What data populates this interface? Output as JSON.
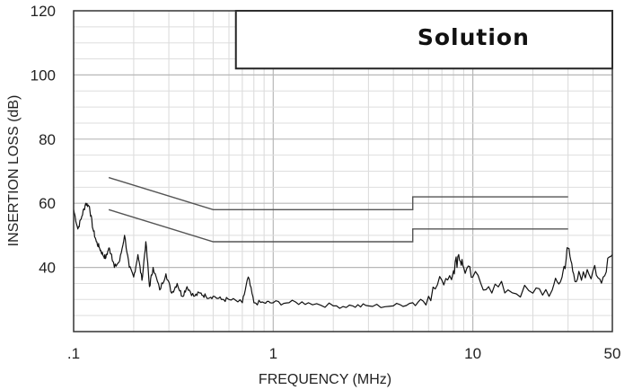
{
  "chart_data": {
    "type": "line",
    "annotation": "Solution",
    "xlabel": "FREQUENCY (MHz)",
    "ylabel": "INSERTION LOSS (dB)",
    "x_scale": "log",
    "xlim": [
      0.1,
      50
    ],
    "ylim": [
      20,
      120
    ],
    "x_ticks": [
      {
        "value": 0.1,
        "label": ".1"
      },
      {
        "value": 1,
        "label": "1"
      },
      {
        "value": 10,
        "label": "10"
      },
      {
        "value": 50,
        "label": "50"
      }
    ],
    "y_ticks": [
      {
        "value": 40,
        "label": "40"
      },
      {
        "value": 60,
        "label": "60"
      },
      {
        "value": 80,
        "label": "80"
      },
      {
        "value": 100,
        "label": "100"
      },
      {
        "value": 120,
        "label": "120"
      }
    ],
    "grid": true,
    "solution_region": {
      "x_from": 0.65,
      "x_to": 50,
      "y_from": 102,
      "y_to": 120
    },
    "limit_lines": [
      {
        "x": [
          0.15,
          0.5,
          5,
          5,
          30
        ],
        "y": [
          68,
          58,
          58,
          62,
          62
        ]
      },
      {
        "x": [
          0.15,
          0.5,
          5,
          5,
          30
        ],
        "y": [
          58,
          48,
          48,
          52,
          52
        ]
      }
    ],
    "series": [
      {
        "x": [
          0.1,
          0.105,
          0.11,
          0.115,
          0.12,
          0.125,
          0.13,
          0.135,
          0.14,
          0.145,
          0.15,
          0.155,
          0.16,
          0.17,
          0.18,
          0.19,
          0.2,
          0.21,
          0.22,
          0.23,
          0.24,
          0.25,
          0.27,
          0.29,
          0.31,
          0.33,
          0.35,
          0.37,
          0.4,
          0.43,
          0.46,
          0.5,
          0.55,
          0.6,
          0.7,
          0.75,
          0.8,
          0.9,
          1,
          1.2,
          1.5,
          2,
          2.5,
          3,
          4,
          5,
          6,
          7,
          8,
          8.5,
          9,
          10,
          12,
          15,
          20,
          25,
          28,
          30,
          32,
          35,
          40,
          45,
          50
        ],
        "y": [
          58,
          52,
          56,
          60,
          59,
          52,
          48,
          46,
          44,
          43,
          46,
          44,
          40,
          42,
          50,
          40,
          37,
          44,
          36,
          48,
          34,
          40,
          33,
          38,
          32,
          35,
          31,
          34,
          31,
          32,
          31,
          31,
          30,
          30,
          29,
          37,
          29,
          29,
          29,
          29,
          29,
          28,
          28,
          28,
          28,
          29,
          31,
          36,
          39,
          44,
          40,
          37,
          34,
          33,
          32,
          33,
          37,
          46,
          38,
          36,
          39,
          37,
          44
        ]
      }
    ]
  }
}
